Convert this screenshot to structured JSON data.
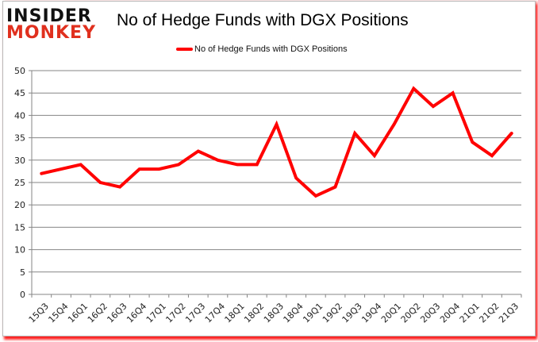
{
  "logo": {
    "line1": "INSIDER",
    "line2": "MONKEY"
  },
  "colors": {
    "series": "#ff0000",
    "grid": "#868686",
    "logo_red": "#e0301e"
  },
  "chart_data": {
    "type": "line",
    "title": "No of Hedge Funds with DGX Positions",
    "xlabel": "",
    "ylabel": "",
    "ylim": [
      0,
      50
    ],
    "yticks": [
      0,
      5,
      10,
      15,
      20,
      25,
      30,
      35,
      40,
      45,
      50
    ],
    "grid": true,
    "legend_position": "top",
    "categories": [
      "15Q3",
      "15Q4",
      "16Q1",
      "16Q2",
      "16Q3",
      "16Q4",
      "17Q1",
      "17Q2",
      "17Q3",
      "17Q4",
      "18Q1",
      "18Q2",
      "18Q3",
      "18Q4",
      "19Q1",
      "19Q2",
      "19Q3",
      "19Q4",
      "20Q1",
      "20Q2",
      "20Q3",
      "20Q4",
      "21Q1",
      "21Q2",
      "21Q3"
    ],
    "series": [
      {
        "name": "No of Hedge Funds with DGX Positions",
        "values": [
          27,
          28,
          29,
          25,
          24,
          28,
          28,
          29,
          32,
          30,
          29,
          29,
          38,
          26,
          22,
          24,
          36,
          31,
          38,
          46,
          42,
          45,
          34,
          31,
          36
        ]
      }
    ]
  }
}
